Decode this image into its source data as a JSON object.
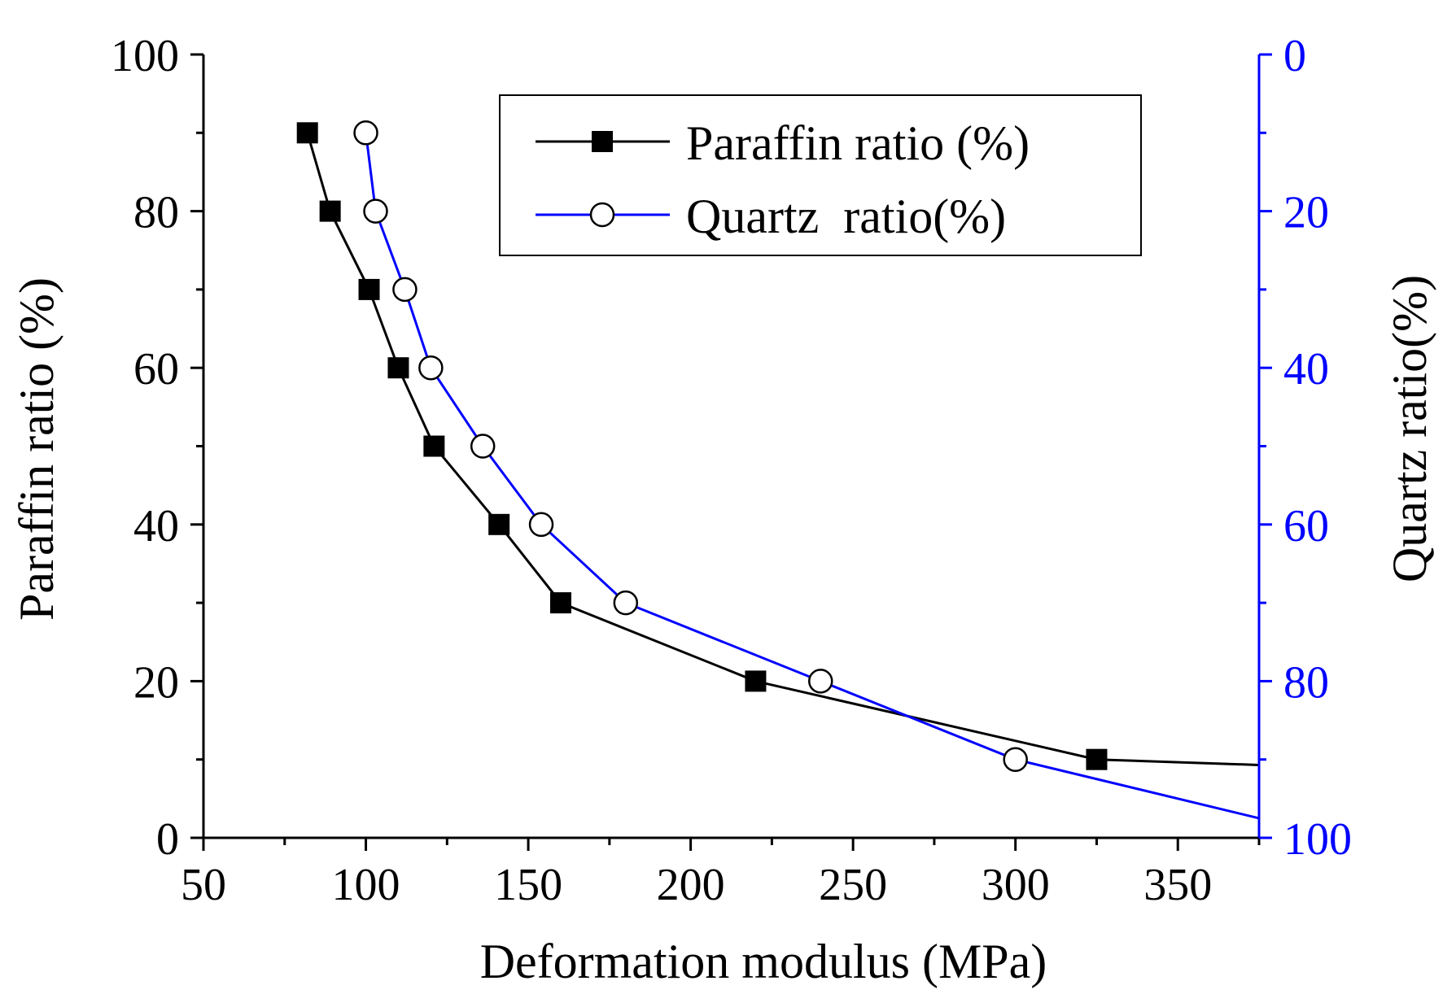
{
  "chart_data": {
    "type": "line",
    "xlabel": "Deformation modulus (MPa)",
    "ylabel": "Paraffin ratio (%)",
    "y2label": "Quartz  ratio(%)",
    "xlim": [
      50,
      375
    ],
    "ylim": [
      0,
      100
    ],
    "y2lim": [
      0,
      100
    ],
    "y2_inverted": true,
    "x_ticks": [
      50,
      100,
      150,
      200,
      250,
      300,
      350
    ],
    "y_ticks": [
      0,
      20,
      40,
      60,
      80,
      100
    ],
    "y2_ticks": [
      0,
      20,
      40,
      60,
      80,
      100
    ],
    "legend_position": "top-center",
    "series": [
      {
        "name": "Paraffin ratio (%)",
        "axis": "left",
        "color": "#000000",
        "marker": "filled-square",
        "points": [
          {
            "x": 82,
            "y": 90
          },
          {
            "x": 89,
            "y": 80
          },
          {
            "x": 101,
            "y": 70
          },
          {
            "x": 110,
            "y": 60
          },
          {
            "x": 121,
            "y": 50
          },
          {
            "x": 141,
            "y": 40
          },
          {
            "x": 160,
            "y": 30
          },
          {
            "x": 220,
            "y": 20
          },
          {
            "x": 325,
            "y": 10
          }
        ],
        "line_extension": {
          "x": 375,
          "y": 9.3
        }
      },
      {
        "name": "Quartz  ratio(%)",
        "axis": "right",
        "color": "#0000ff",
        "marker": "open-circle",
        "points": [
          {
            "x": 100,
            "y": 10
          },
          {
            "x": 103,
            "y": 20
          },
          {
            "x": 112,
            "y": 30
          },
          {
            "x": 120,
            "y": 40
          },
          {
            "x": 136,
            "y": 50
          },
          {
            "x": 154,
            "y": 60
          },
          {
            "x": 180,
            "y": 70
          },
          {
            "x": 240,
            "y": 80
          },
          {
            "x": 300,
            "y": 90
          }
        ],
        "line_extension": {
          "x": 375,
          "y": 97.5
        }
      }
    ]
  }
}
